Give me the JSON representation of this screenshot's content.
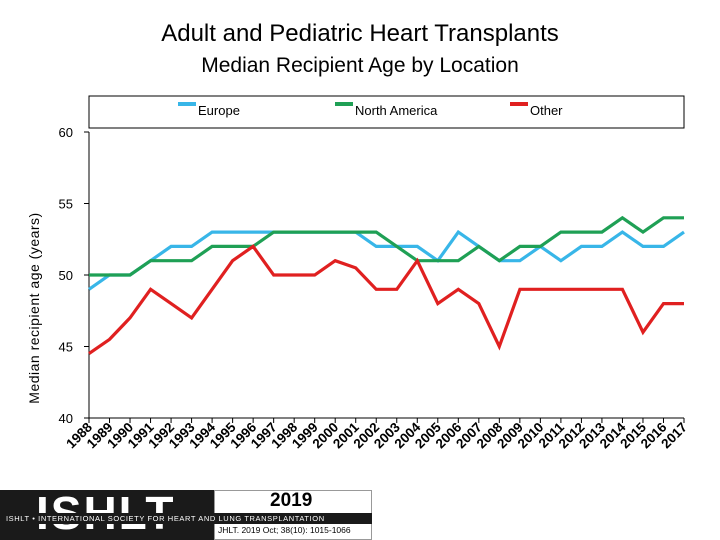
{
  "chart_data": {
    "type": "line",
    "title": "Adult and Pediatric Heart Transplants",
    "subtitle": "Median Recipient Age by Location",
    "xlabel": "",
    "ylabel": "Median recipient age (years)",
    "ylim": [
      40,
      60
    ],
    "yticks": [
      40,
      45,
      50,
      55,
      60
    ],
    "categories": [
      "1988",
      "1989",
      "1990",
      "1991",
      "1992",
      "1993",
      "1994",
      "1995",
      "1996",
      "1997",
      "1998",
      "1999",
      "2000",
      "2001",
      "2002",
      "2003",
      "2004",
      "2005",
      "2006",
      "2007",
      "2008",
      "2009",
      "2010",
      "2011",
      "2012",
      "2013",
      "2014",
      "2015",
      "2016",
      "2017"
    ],
    "legend_position": "top",
    "series": [
      {
        "name": "Europe",
        "color": "#38b6e8",
        "values": [
          49,
          50,
          50,
          51,
          52,
          52,
          53,
          53,
          53,
          53,
          53,
          53,
          53,
          53,
          52,
          52,
          52,
          51,
          53,
          52,
          51,
          51,
          52,
          51,
          52,
          52,
          53,
          52,
          52,
          53
        ]
      },
      {
        "name": "North America",
        "color": "#1fa055",
        "values": [
          50,
          50,
          50,
          51,
          51,
          51,
          52,
          52,
          52,
          53,
          53,
          53,
          53,
          53,
          53,
          52,
          51,
          51,
          51,
          52,
          51,
          52,
          52,
          53,
          53,
          53,
          54,
          53,
          54,
          54
        ]
      },
      {
        "name": "Other",
        "color": "#e02020",
        "values": [
          44.5,
          45.5,
          47,
          49,
          48,
          47,
          49,
          51,
          52,
          50,
          50,
          50,
          51,
          50.5,
          49,
          49,
          51,
          48,
          49,
          48,
          45,
          49,
          49,
          49,
          49,
          49,
          49,
          46,
          48,
          48
        ]
      }
    ]
  },
  "footer": {
    "logo_text": "ISHLT",
    "org_band": "ISHLT • INTERNATIONAL SOCIETY FOR HEART AND LUNG TRANSPLANTATION",
    "year": "2019",
    "citation": "JHLT. 2019 Oct; 38(10): 1015-1066"
  }
}
